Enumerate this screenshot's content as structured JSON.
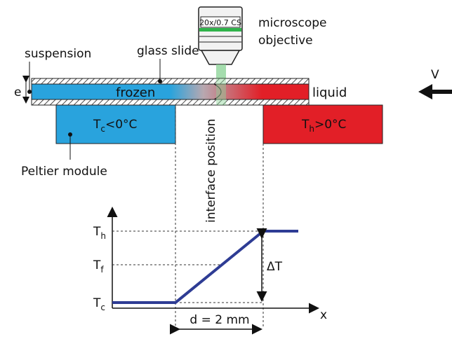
{
  "objective": {
    "label": "20x/0.7 CS",
    "caption": [
      "microscope",
      "objective"
    ]
  },
  "labels": {
    "glass_slide": "glass slide",
    "suspension": "suspension",
    "thickness": "e",
    "velocity": "V",
    "frozen": "frozen",
    "liquid": "liquid",
    "peltier": "Peltier module",
    "interface": "interface position"
  },
  "cold_module": {
    "symbol": "T",
    "sub": "c",
    "rest": "<0°C"
  },
  "hot_module": {
    "symbol": "T",
    "sub": "h",
    "rest": ">0°C"
  },
  "graph": {
    "y_labels": [
      {
        "symbol": "T",
        "sub": "h"
      },
      {
        "symbol": "T",
        "sub": "f"
      },
      {
        "symbol": "T",
        "sub": "c"
      }
    ],
    "x_label": "x",
    "delta": "ΔT",
    "distance": "d = 2 mm"
  }
}
